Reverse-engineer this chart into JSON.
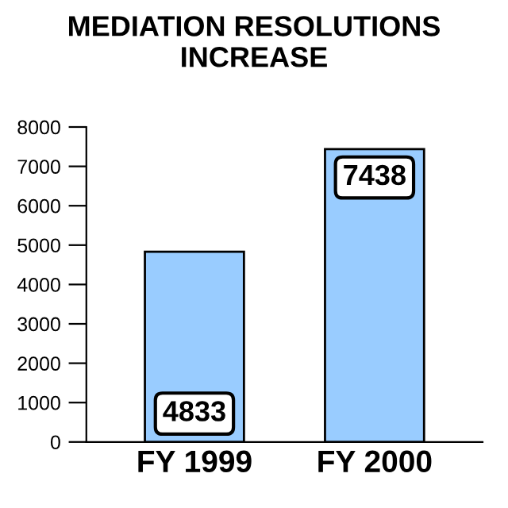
{
  "chart_data": {
    "type": "bar",
    "title": "MEDIATION RESOLUTIONS\nINCREASE",
    "categories": [
      "FY 1999",
      "FY 2000"
    ],
    "values": [
      4833,
      7438
    ],
    "color": "#99ccff",
    "ylim": [
      0,
      8000
    ],
    "yticks": [
      0,
      1000,
      2000,
      3000,
      4000,
      5000,
      6000,
      7000,
      8000
    ],
    "data_labels": true,
    "grid": false,
    "legend": false
  }
}
